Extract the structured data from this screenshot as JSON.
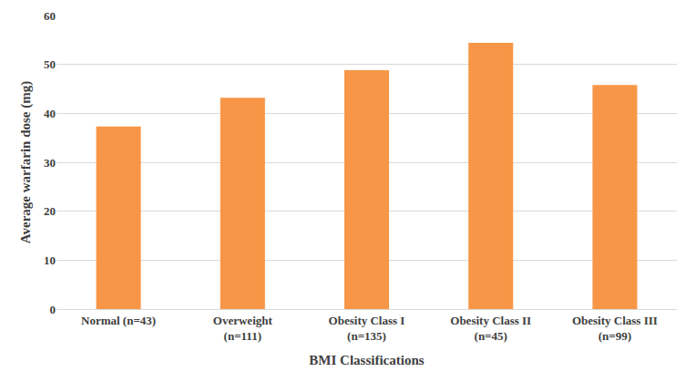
{
  "chart_data": {
    "type": "bar",
    "x_label": "BMI Classifications",
    "y_label": "Average warfarin dose (mg)",
    "categories": [
      "Normal (n=43)",
      "Overweight (n=111)",
      "Obesity Class I (n=135)",
      "Obesity Class II (n=45)",
      "Obesity Class III (n=99)"
    ],
    "values": [
      37.3,
      43.2,
      48.8,
      54.4,
      45.8
    ],
    "color": "#f79646",
    "ylim": [
      0,
      60
    ],
    "yticks": [
      0,
      10,
      20,
      30,
      40,
      50,
      60
    ],
    "grid": true
  }
}
